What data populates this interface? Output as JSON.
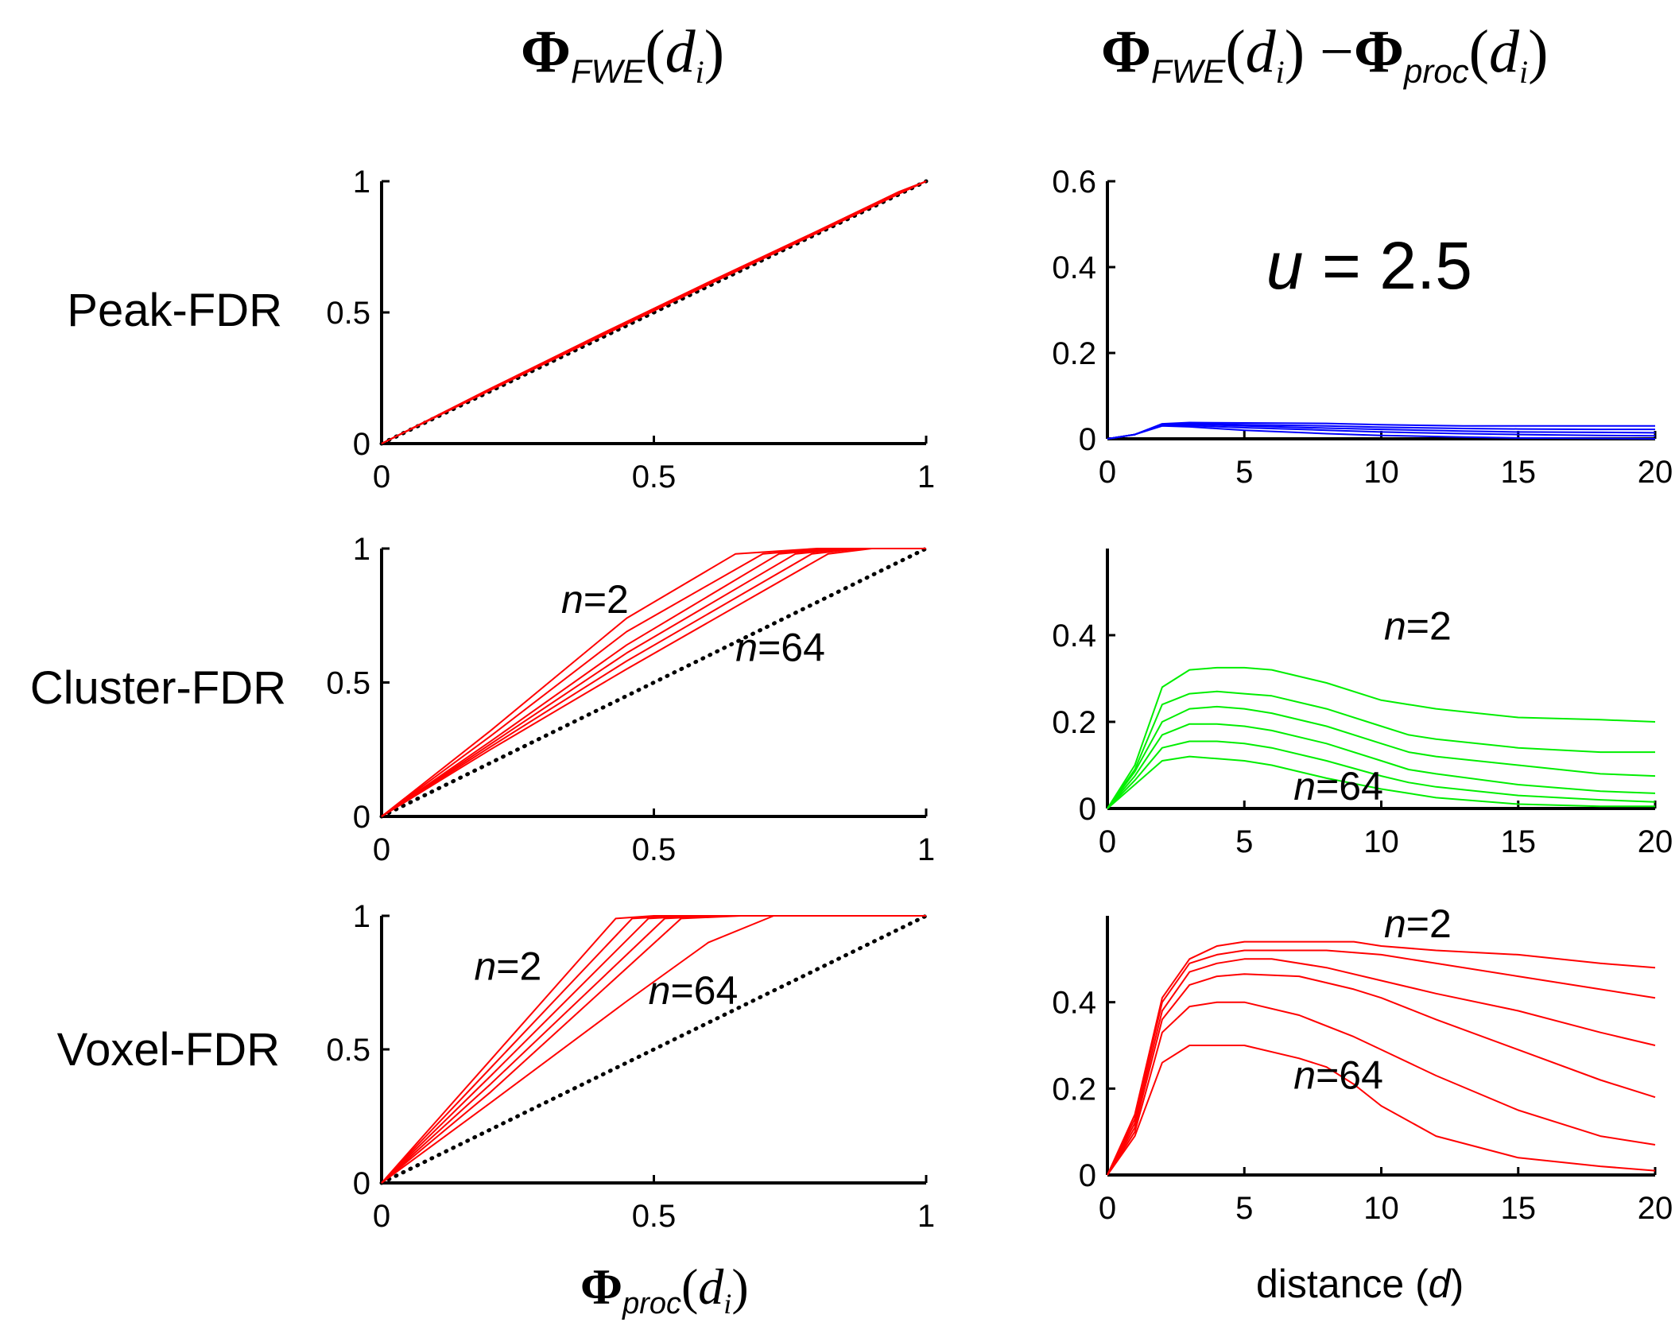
{
  "titles": {
    "left": {
      "phi": "Φ",
      "sub": "FWE",
      "open": "(",
      "d": "d",
      "i": "i",
      "close": ")"
    },
    "right": {
      "phi1": "Φ",
      "sub1": "FWE",
      "open1": "(",
      "d1": "d",
      "i1": "i",
      "close1": ")",
      "minus": " −",
      "phi2": "Φ",
      "sub2": "proc",
      "open2": "(",
      "d2": "d",
      "i2": "i",
      "close2": ")"
    }
  },
  "row_labels": [
    "Peak-FDR",
    "Cluster-FDR",
    "Voxel-FDR"
  ],
  "xlabels": {
    "left": {
      "phi": "Φ",
      "sub": "proc",
      "open": "(",
      "d": "d",
      "i": "i",
      "close": ")"
    },
    "right": {
      "text": "distance (",
      "var": "d",
      "close": ")"
    }
  },
  "colors": {
    "peak": "#ff0000",
    "cluster_left": "#ff0000",
    "cluster_right": "#00ee00",
    "voxel": "#ff0000",
    "peak_right": "#0000ff",
    "identity": "#000000"
  },
  "chart_data": [
    {
      "id": "peak-left",
      "type": "line",
      "xlim": [
        0,
        1
      ],
      "ylim": [
        0,
        1
      ],
      "xticks": [
        "0",
        "0.5",
        "1"
      ],
      "yticks": [
        "0",
        "0.5",
        "1"
      ],
      "identity_line": true,
      "series": [
        {
          "x": [
            0,
            0.2,
            0.4,
            0.6,
            0.8,
            0.95,
            1
          ],
          "y": [
            0,
            0.21,
            0.415,
            0.615,
            0.81,
            0.96,
            1
          ]
        },
        {
          "x": [
            0,
            0.2,
            0.4,
            0.6,
            0.8,
            0.95,
            1
          ],
          "y": [
            0,
            0.207,
            0.41,
            0.61,
            0.806,
            0.955,
            1
          ]
        },
        {
          "x": [
            0,
            0.2,
            0.4,
            0.6,
            0.8,
            0.95,
            1
          ],
          "y": [
            0,
            0.204,
            0.406,
            0.606,
            0.803,
            0.952,
            1
          ]
        }
      ]
    },
    {
      "id": "peak-right",
      "type": "line",
      "xlim": [
        0,
        20
      ],
      "ylim": [
        0,
        0.6
      ],
      "xticks": [
        "0",
        "5",
        "10",
        "15",
        "20"
      ],
      "yticks": [
        "0",
        "0.2",
        "0.4",
        "0.6"
      ],
      "annotation": {
        "var": "u",
        "eq": " = 2.5"
      },
      "series": [
        {
          "x": [
            0,
            1,
            2,
            3,
            5,
            8,
            10,
            13,
            15,
            18,
            20
          ],
          "y": [
            0,
            0.01,
            0.035,
            0.038,
            0.037,
            0.036,
            0.033,
            0.03,
            0.03,
            0.03,
            0.03
          ]
        },
        {
          "x": [
            0,
            1,
            2,
            3,
            5,
            8,
            10,
            13,
            15,
            18,
            20
          ],
          "y": [
            0,
            0.01,
            0.034,
            0.036,
            0.033,
            0.03,
            0.027,
            0.024,
            0.023,
            0.022,
            0.022
          ]
        },
        {
          "x": [
            0,
            1,
            2,
            3,
            5,
            8,
            10,
            13,
            15,
            18,
            20
          ],
          "y": [
            0,
            0.01,
            0.033,
            0.034,
            0.03,
            0.025,
            0.022,
            0.018,
            0.016,
            0.015,
            0.014
          ]
        },
        {
          "x": [
            0,
            1,
            2,
            3,
            5,
            8,
            10,
            13,
            15,
            18,
            20
          ],
          "y": [
            0,
            0.01,
            0.032,
            0.031,
            0.026,
            0.02,
            0.016,
            0.012,
            0.01,
            0.008,
            0.007
          ]
        },
        {
          "x": [
            0,
            1,
            2,
            3,
            5,
            8,
            10,
            13,
            15,
            18,
            20
          ],
          "y": [
            0,
            0.01,
            0.03,
            0.028,
            0.02,
            0.012,
            0.008,
            0.004,
            0.002,
            0.001,
            0
          ]
        }
      ]
    },
    {
      "id": "cluster-left",
      "type": "line",
      "xlim": [
        0,
        1
      ],
      "ylim": [
        0,
        1
      ],
      "xticks": [
        "0",
        "0.5",
        "1"
      ],
      "yticks": [
        "0",
        "0.5",
        "1"
      ],
      "identity_line": true,
      "annotations": [
        {
          "var": "n",
          "eq": "=2"
        },
        {
          "var": "n",
          "eq": "=64"
        }
      ],
      "series": [
        {
          "x": [
            0,
            0.2,
            0.45,
            0.65,
            0.8,
            1
          ],
          "y": [
            0,
            0.32,
            0.74,
            0.98,
            1,
            1
          ]
        },
        {
          "x": [
            0,
            0.2,
            0.45,
            0.7,
            0.82,
            1
          ],
          "y": [
            0,
            0.3,
            0.69,
            0.98,
            1,
            1
          ]
        },
        {
          "x": [
            0,
            0.2,
            0.45,
            0.73,
            0.84,
            1
          ],
          "y": [
            0,
            0.28,
            0.64,
            0.98,
            1,
            1
          ]
        },
        {
          "x": [
            0,
            0.2,
            0.45,
            0.76,
            0.86,
            1
          ],
          "y": [
            0,
            0.27,
            0.61,
            0.98,
            1,
            1
          ]
        },
        {
          "x": [
            0,
            0.2,
            0.45,
            0.79,
            0.88,
            1
          ],
          "y": [
            0,
            0.26,
            0.58,
            0.98,
            1,
            1
          ]
        },
        {
          "x": [
            0,
            0.2,
            0.45,
            0.82,
            0.9,
            1
          ],
          "y": [
            0,
            0.25,
            0.55,
            0.98,
            1,
            1
          ]
        }
      ]
    },
    {
      "id": "cluster-right",
      "type": "line",
      "xlim": [
        0,
        20
      ],
      "ylim": [
        0,
        0.6
      ],
      "xticks": [
        "0",
        "5",
        "10",
        "15",
        "20"
      ],
      "yticks": [
        "0",
        "0.2",
        "0.4"
      ],
      "annotations": [
        {
          "var": "n",
          "eq": "=2"
        },
        {
          "var": "n",
          "eq": "=64"
        }
      ],
      "series": [
        {
          "x": [
            0,
            1,
            2,
            3,
            4,
            5,
            6,
            8,
            10,
            11,
            12,
            15,
            18,
            20
          ],
          "y": [
            0,
            0.1,
            0.28,
            0.32,
            0.325,
            0.325,
            0.32,
            0.29,
            0.25,
            0.24,
            0.23,
            0.21,
            0.205,
            0.2
          ]
        },
        {
          "x": [
            0,
            1,
            2,
            3,
            4,
            5,
            6,
            8,
            10,
            11,
            12,
            15,
            18,
            20
          ],
          "y": [
            0,
            0.09,
            0.24,
            0.265,
            0.27,
            0.265,
            0.26,
            0.23,
            0.19,
            0.17,
            0.16,
            0.14,
            0.13,
            0.13
          ]
        },
        {
          "x": [
            0,
            1,
            2,
            3,
            4,
            5,
            6,
            8,
            10,
            11,
            12,
            15,
            18,
            20
          ],
          "y": [
            0,
            0.085,
            0.2,
            0.23,
            0.235,
            0.23,
            0.22,
            0.19,
            0.15,
            0.13,
            0.12,
            0.1,
            0.08,
            0.075
          ]
        },
        {
          "x": [
            0,
            1,
            2,
            3,
            4,
            5,
            6,
            8,
            10,
            11,
            12,
            15,
            18,
            20
          ],
          "y": [
            0,
            0.075,
            0.17,
            0.195,
            0.195,
            0.19,
            0.18,
            0.15,
            0.11,
            0.09,
            0.08,
            0.055,
            0.04,
            0.035
          ]
        },
        {
          "x": [
            0,
            1,
            2,
            3,
            4,
            5,
            6,
            8,
            10,
            11,
            12,
            15,
            18,
            20
          ],
          "y": [
            0,
            0.065,
            0.14,
            0.155,
            0.155,
            0.15,
            0.14,
            0.11,
            0.075,
            0.06,
            0.05,
            0.03,
            0.02,
            0.015
          ]
        },
        {
          "x": [
            0,
            1,
            2,
            3,
            4,
            5,
            6,
            8,
            10,
            11,
            12,
            15,
            18,
            20
          ],
          "y": [
            0,
            0.055,
            0.11,
            0.12,
            0.115,
            0.11,
            0.1,
            0.07,
            0.045,
            0.035,
            0.025,
            0.01,
            0.005,
            0.005
          ]
        }
      ]
    },
    {
      "id": "voxel-left",
      "type": "line",
      "xlim": [
        0,
        1
      ],
      "ylim": [
        0,
        1
      ],
      "xticks": [
        "0",
        "0.5",
        "1"
      ],
      "yticks": [
        "0",
        "0.5",
        "1"
      ],
      "identity_line": true,
      "annotations": [
        {
          "var": "n",
          "eq": "=2"
        },
        {
          "var": "n",
          "eq": "=64"
        }
      ],
      "series": [
        {
          "x": [
            0,
            0.2,
            0.43,
            0.5,
            1
          ],
          "y": [
            0,
            0.46,
            0.99,
            1,
            1
          ]
        },
        {
          "x": [
            0,
            0.2,
            0.46,
            0.55,
            1
          ],
          "y": [
            0,
            0.43,
            0.99,
            1,
            1
          ]
        },
        {
          "x": [
            0,
            0.2,
            0.49,
            0.58,
            1
          ],
          "y": [
            0,
            0.4,
            0.99,
            1,
            1
          ]
        },
        {
          "x": [
            0,
            0.2,
            0.52,
            0.62,
            1
          ],
          "y": [
            0,
            0.37,
            0.99,
            1,
            1
          ]
        },
        {
          "x": [
            0,
            0.2,
            0.55,
            0.66,
            1
          ],
          "y": [
            0,
            0.34,
            0.99,
            1,
            1
          ]
        },
        {
          "x": [
            0,
            0.2,
            0.45,
            0.6,
            0.72,
            1
          ],
          "y": [
            0,
            0.3,
            0.68,
            0.9,
            1,
            1
          ]
        }
      ]
    },
    {
      "id": "voxel-right",
      "type": "line",
      "xlim": [
        0,
        20
      ],
      "ylim": [
        0,
        0.6
      ],
      "xticks": [
        "0",
        "5",
        "10",
        "15",
        "20"
      ],
      "yticks": [
        "0",
        "0.2",
        "0.4"
      ],
      "annotations": [
        {
          "var": "n",
          "eq": "=2"
        },
        {
          "var": "n",
          "eq": "=64"
        }
      ],
      "series": [
        {
          "x": [
            0,
            1,
            2,
            3,
            4,
            5,
            7,
            9,
            10,
            12,
            15,
            18,
            20
          ],
          "y": [
            0,
            0.14,
            0.41,
            0.5,
            0.53,
            0.54,
            0.54,
            0.54,
            0.53,
            0.52,
            0.51,
            0.49,
            0.48
          ]
        },
        {
          "x": [
            0,
            1,
            2,
            3,
            4,
            5,
            6,
            8,
            10,
            12,
            15,
            18,
            20
          ],
          "y": [
            0,
            0.13,
            0.4,
            0.49,
            0.51,
            0.52,
            0.52,
            0.52,
            0.51,
            0.49,
            0.46,
            0.43,
            0.41
          ]
        },
        {
          "x": [
            0,
            1,
            2,
            3,
            4,
            5,
            6,
            8,
            10,
            12,
            15,
            18,
            20
          ],
          "y": [
            0,
            0.12,
            0.38,
            0.47,
            0.49,
            0.5,
            0.5,
            0.48,
            0.45,
            0.42,
            0.38,
            0.33,
            0.3
          ]
        },
        {
          "x": [
            0,
            1,
            2,
            3,
            4,
            5,
            7,
            9,
            10,
            12,
            15,
            18,
            20
          ],
          "y": [
            0,
            0.11,
            0.36,
            0.44,
            0.46,
            0.465,
            0.46,
            0.43,
            0.41,
            0.36,
            0.29,
            0.22,
            0.18
          ]
        },
        {
          "x": [
            0,
            1,
            2,
            3,
            4,
            5,
            7,
            9,
            10,
            12,
            15,
            18,
            20
          ],
          "y": [
            0,
            0.1,
            0.33,
            0.39,
            0.4,
            0.4,
            0.37,
            0.32,
            0.29,
            0.23,
            0.15,
            0.09,
            0.07
          ]
        },
        {
          "x": [
            0,
            1,
            2,
            3,
            4,
            5,
            7,
            8,
            9,
            10,
            12,
            15,
            18,
            20
          ],
          "y": [
            0,
            0.09,
            0.26,
            0.3,
            0.3,
            0.3,
            0.27,
            0.25,
            0.21,
            0.16,
            0.09,
            0.04,
            0.02,
            0.01
          ]
        }
      ]
    }
  ]
}
